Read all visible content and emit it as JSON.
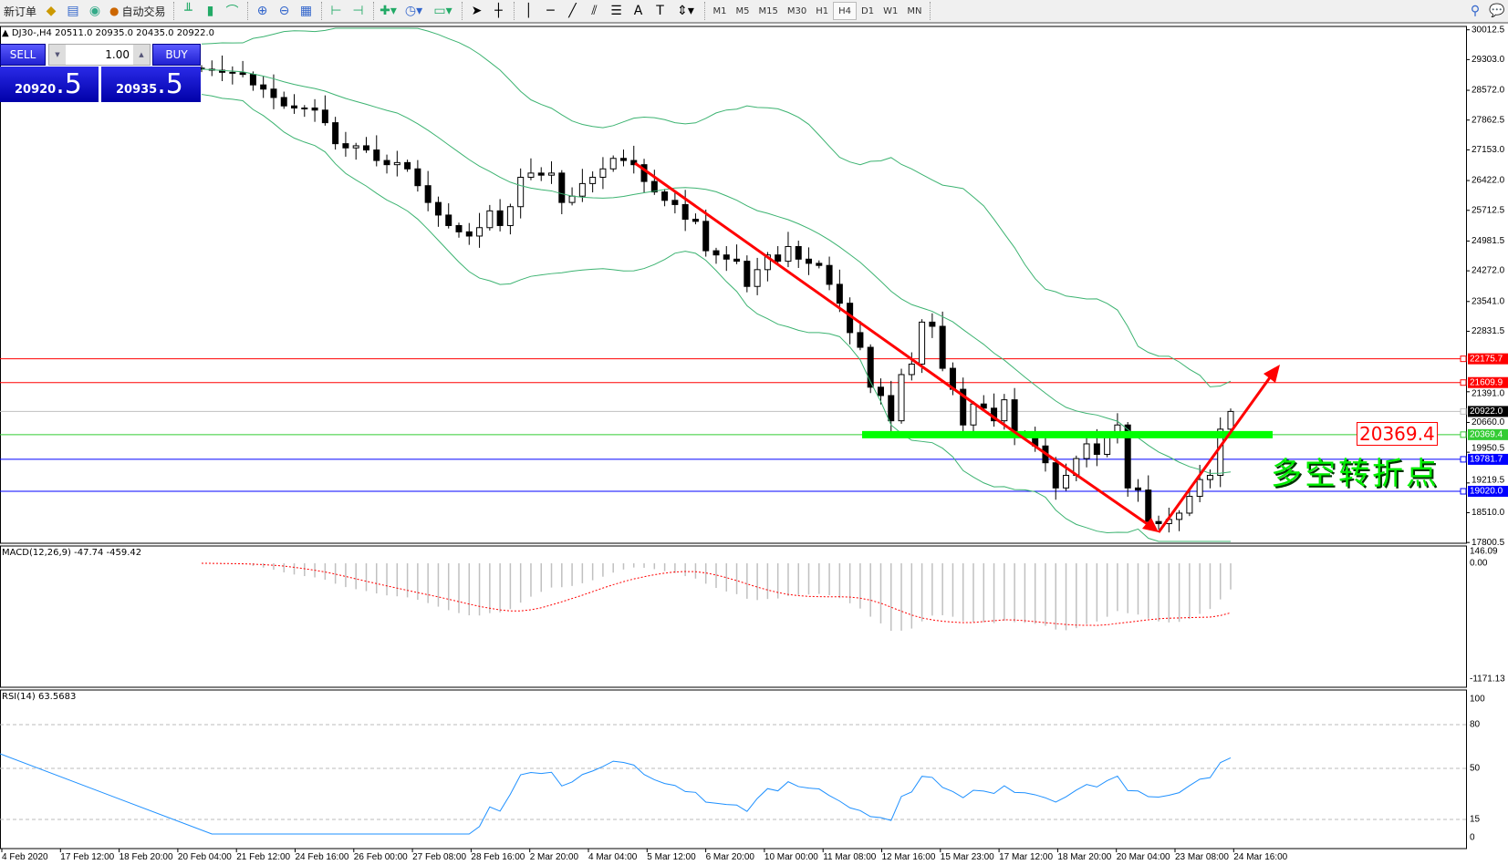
{
  "toolbar": {
    "new_order": "新订单",
    "auto_trading": "自动交易",
    "timeframes": [
      "M1",
      "M5",
      "M15",
      "M30",
      "H1",
      "H4",
      "D1",
      "W1",
      "MN"
    ],
    "active_timeframe": "H4",
    "icons": [
      "bar-chart-icon",
      "candlestick-icon",
      "line-chart-icon",
      "zoom-in-icon",
      "zoom-out-icon",
      "tile-windows-icon",
      "autoscroll-icon",
      "chart-shift-icon",
      "indicators-icon",
      "periods-icon",
      "templates-icon",
      "cursor-icon",
      "crosshair-icon",
      "vertical-line-icon",
      "horizontal-line-icon",
      "trendline-icon",
      "equidistant-channel-icon",
      "fibonacci-icon",
      "text-icon",
      "text-label-icon",
      "arrows-icon"
    ]
  },
  "chart": {
    "title": "DJ30-,H4  20511.0 20935.0 20435.0 20922.0",
    "sell_label": "SELL",
    "buy_label": "BUY",
    "lot": "1.00",
    "bid_main": "20920",
    "bid_big": ".5",
    "ask_main": "20935",
    "ask_big": ".5",
    "annotation": "多空转折点",
    "pivot_label": "20369.4"
  },
  "chart_data": {
    "type": "candlestick",
    "symbol": "DJ30-",
    "timeframe": "H4",
    "closes": [
      29074,
      29050,
      29000,
      28990,
      28950,
      28700,
      28600,
      28400,
      28200,
      28150,
      28150,
      28100,
      27800,
      27300,
      27200,
      27250,
      27150,
      26900,
      26800,
      26850,
      26700,
      26300,
      25900,
      25600,
      25350,
      25200,
      25100,
      25300,
      25700,
      25350,
      25800,
      26500,
      26600,
      26550,
      26600,
      25900,
      26050,
      26350,
      26500,
      26700,
      26950,
      26900,
      26800,
      26400,
      26150,
      25950,
      25850,
      25500,
      25450,
      24750,
      24650,
      24550,
      24500,
      23900,
      24300,
      24650,
      24500,
      24850,
      24550,
      24450,
      24400,
      23950,
      23500,
      22800,
      22450,
      21500,
      21300,
      20700,
      21800,
      22050,
      23050,
      22950,
      21950,
      21450,
      20600,
      21100,
      21000,
      20700,
      21200,
      20400,
      20350,
      20100,
      19700,
      19100,
      19400,
      19800,
      20150,
      19900,
      20300,
      20600,
      19100,
      19050,
      18300,
      18250,
      18350,
      18500,
      18900,
      19300,
      19400,
      20500,
      20922
    ],
    "price_axis": [
      "30012.5",
      "29303.0",
      "28572.0",
      "27862.5",
      "27153.0",
      "26422.0",
      "25712.5",
      "24981.5",
      "24272.0",
      "23541.0",
      "22831.5",
      "21391.0",
      "20660.0",
      "19950.5",
      "19219.5",
      "18510.0",
      "17800.5"
    ],
    "price_range": [
      17800.5,
      30012.5
    ],
    "time_axis": [
      "4 Feb 2020",
      "17 Feb 12:00",
      "18 Feb 20:00",
      "20 Feb 04:00",
      "21 Feb 12:00",
      "24 Feb 16:00",
      "26 Feb 00:00",
      "27 Feb 08:00",
      "28 Feb 16:00",
      "2 Mar 20:00",
      "4 Mar 04:00",
      "5 Mar 12:00",
      "6 Mar 20:00",
      "10 Mar 00:00",
      "11 Mar 08:00",
      "12 Mar 16:00",
      "15 Mar 23:00",
      "17 Mar 12:00",
      "18 Mar 20:00",
      "20 Mar 04:00",
      "23 Mar 08:00",
      "24 Mar 16:00"
    ],
    "hlines": [
      {
        "price": 22175.7,
        "label": "22175.7",
        "color": "#ff0000"
      },
      {
        "price": 21609.9,
        "label": "21609.9",
        "color": "#ff0000"
      },
      {
        "price": 20922.0,
        "label": "20922.0",
        "color": "#c0c0c0",
        "label_bg": "#000000"
      },
      {
        "price": 20369.4,
        "label": "20369.4",
        "color": "#33cc33"
      },
      {
        "price": 19781.7,
        "label": "19781.7",
        "color": "#0000ff"
      },
      {
        "price": 19020.0,
        "label": "19020.0",
        "color": "#0000ff"
      }
    ],
    "bollinger": {
      "period": 20,
      "deviation": 2,
      "color": "#3cb371"
    },
    "macd": {
      "label": "MACD(12,26,9) -47.74 -459.42",
      "axis": [
        "146.09",
        "0.00",
        "-1171.13"
      ],
      "range": [
        -1171.13,
        146.09
      ],
      "hist_color": "#c0c0c0",
      "signal_color": "#ff0000"
    },
    "rsi": {
      "label": "RSI(14) 63.5683",
      "axis": [
        "100",
        "80",
        "50",
        "15",
        "0"
      ],
      "levels": [
        80,
        50,
        15
      ],
      "color": "#1e90ff"
    },
    "colors": {
      "bull": "#ffffff",
      "bear": "#000000",
      "trend": "#ff0000",
      "pivot_zone": "#00ff00"
    }
  }
}
